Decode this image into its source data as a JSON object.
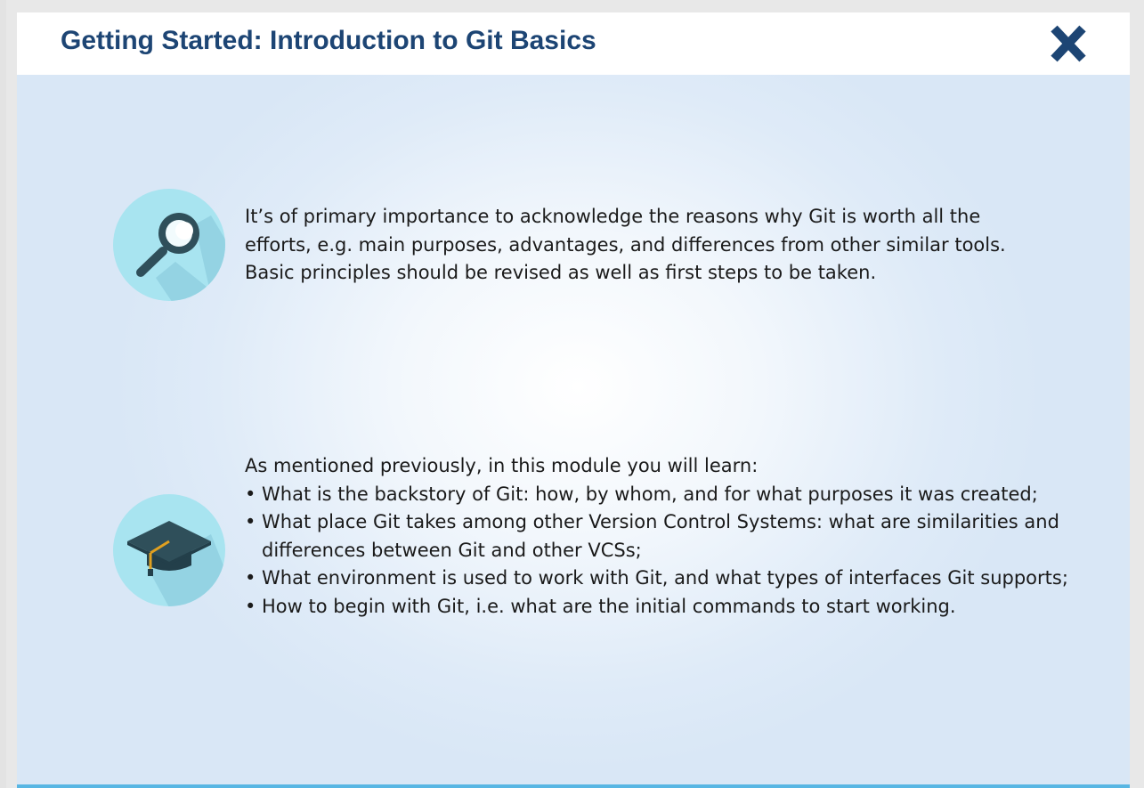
{
  "header": {
    "title": "Getting Started: Introduction to Git Basics",
    "close_icon": "close-icon"
  },
  "sections": [
    {
      "icon": "magnifier-icon",
      "text": "It’s of primary importance to acknowledge the reasons why Git is worth all the efforts, e.g. main purposes, advantages, and differences from other similar tools. Basic principles should be revised as well as first steps to be taken."
    },
    {
      "icon": "graduation-cap-icon",
      "intro": "As mentioned previously, in this module you will learn:",
      "bullets": [
        "What is the backstory of Git: how, by whom,  and for what purposes it was created;",
        "What place Git takes among other Version Control Systems: what are similarities and differences between Git and other VCSs;",
        "What environment is used to work with Git, and what types of interfaces Git supports;",
        "How to begin with Git, i.e. what are the initial commands to start working."
      ]
    }
  ],
  "colors": {
    "title": "#1d4574",
    "close_icon": "#1d4574",
    "icon_circle": "#a8e4f0",
    "bottom_bar": "#58b6e3"
  }
}
